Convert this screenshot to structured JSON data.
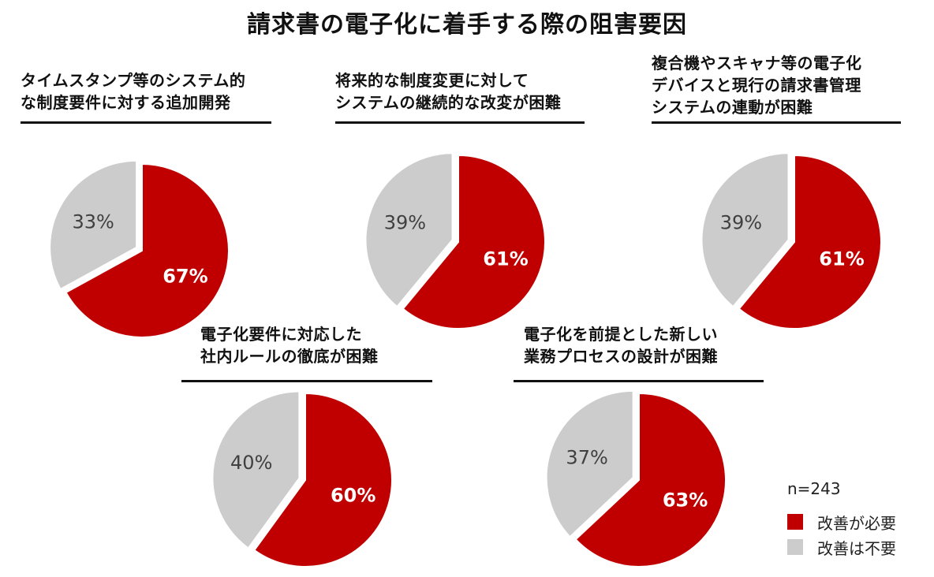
{
  "title": "請求書の電子化に着手する際の阻害要因",
  "legend": {
    "n_label": "n=243",
    "items": [
      {
        "label": "改善が必要",
        "color": "#c00000"
      },
      {
        "label": "改善は不要",
        "color": "#cccccc"
      }
    ]
  },
  "chart_data": [
    {
      "type": "pie",
      "title_lines": [
        "タイムスタンプ等のシステム的",
        "な制度要件に対する追加開発"
      ],
      "categories": [
        "改善が必要",
        "改善は不要"
      ],
      "values": [
        67,
        33
      ],
      "labels": [
        "67%",
        "33%"
      ],
      "colors": [
        "#c00000",
        "#cccccc"
      ]
    },
    {
      "type": "pie",
      "title_lines": [
        "将来的な制度変更に対して",
        "システムの継続的な改変が困難"
      ],
      "categories": [
        "改善が必要",
        "改善は不要"
      ],
      "values": [
        61,
        39
      ],
      "labels": [
        "61%",
        "39%"
      ],
      "colors": [
        "#c00000",
        "#cccccc"
      ]
    },
    {
      "type": "pie",
      "title_lines": [
        "複合機やスキャナ等の電子化",
        "デバイスと現行の請求書管理",
        "システムの連動が困難"
      ],
      "categories": [
        "改善が必要",
        "改善は不要"
      ],
      "values": [
        61,
        39
      ],
      "labels": [
        "61%",
        "39%"
      ],
      "colors": [
        "#c00000",
        "#cccccc"
      ]
    },
    {
      "type": "pie",
      "title_lines": [
        "電子化要件に対応した",
        "社内ルールの徹底が困難"
      ],
      "categories": [
        "改善が必要",
        "改善は不要"
      ],
      "values": [
        60,
        40
      ],
      "labels": [
        "60%",
        "40%"
      ],
      "colors": [
        "#c00000",
        "#cccccc"
      ]
    },
    {
      "type": "pie",
      "title_lines": [
        "電子化を前提とした新しい",
        "業務プロセスの設計が困難"
      ],
      "categories": [
        "改善が必要",
        "改善は不要"
      ],
      "values": [
        63,
        37
      ],
      "labels": [
        "63%",
        "37%"
      ],
      "colors": [
        "#c00000",
        "#cccccc"
      ]
    }
  ]
}
